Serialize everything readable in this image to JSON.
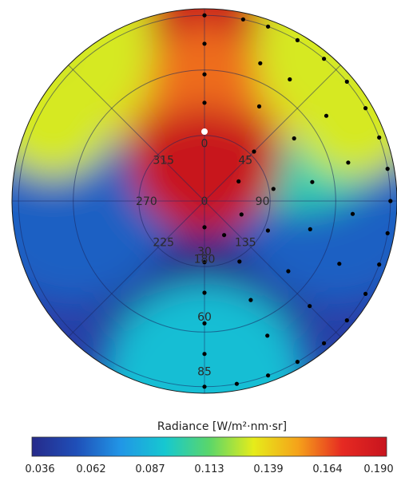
{
  "chart_data": {
    "type": "heatmap",
    "projection": "polar",
    "colorbar": {
      "title": "Radiance [W/m²·nm·sr]",
      "ticks": [
        "0.036",
        "0.062",
        "0.087",
        "0.113",
        "0.139",
        "0.164",
        "0.190"
      ],
      "vmin": 0.036,
      "vmax": 0.19,
      "colors": [
        "#262a8a",
        "#1f4fb8",
        "#2196e6",
        "#16c8d0",
        "#5ad66a",
        "#e6ec1a",
        "#f5a21a",
        "#e62a22",
        "#c8141e"
      ]
    },
    "azimuth_labels": [
      "0",
      "45",
      "90",
      "135",
      "180",
      "225",
      "270",
      "315"
    ],
    "zenith_labels": [
      "0",
      "30",
      "60",
      "85"
    ],
    "sun_position": {
      "azimuth_deg": 0,
      "zenith_deg": 20
    },
    "radiance_field": [
      {
        "azimuth_deg": 0,
        "zenith_deg": 85,
        "value": 0.19
      },
      {
        "azimuth_deg": 0,
        "zenith_deg": 50,
        "value": 0.14
      },
      {
        "azimuth_deg": 0,
        "zenith_deg": 20,
        "value": 0.19
      },
      {
        "azimuth_deg": 45,
        "zenith_deg": 60,
        "value": 0.1
      },
      {
        "azimuth_deg": 90,
        "zenith_deg": 60,
        "value": 0.06
      },
      {
        "azimuth_deg": 180,
        "zenith_deg": 40,
        "value": 0.036
      },
      {
        "azimuth_deg": 180,
        "zenith_deg": 85,
        "value": 0.09
      },
      {
        "azimuth_deg": 270,
        "zenith_deg": 60,
        "value": 0.06
      }
    ],
    "sample_points": [
      {
        "az": 0,
        "zen": 85
      },
      {
        "az": 0,
        "zen": 72
      },
      {
        "az": 0,
        "zen": 58
      },
      {
        "az": 0,
        "zen": 45
      },
      {
        "az": 180,
        "zen": 12
      },
      {
        "az": 180,
        "zen": 28
      },
      {
        "az": 180,
        "zen": 42
      },
      {
        "az": 180,
        "zen": 56
      },
      {
        "az": 180,
        "zen": 70
      },
      {
        "az": 180,
        "zen": 85
      },
      {
        "az": 12,
        "zen": 85
      },
      {
        "az": 20,
        "zen": 85
      },
      {
        "az": 30,
        "zen": 85
      },
      {
        "az": 40,
        "zen": 85
      },
      {
        "az": 50,
        "zen": 85
      },
      {
        "az": 60,
        "zen": 85
      },
      {
        "az": 70,
        "zen": 85
      },
      {
        "az": 80,
        "zen": 85
      },
      {
        "az": 90,
        "zen": 85
      },
      {
        "az": 100,
        "zen": 85
      },
      {
        "az": 110,
        "zen": 85
      },
      {
        "az": 120,
        "zen": 85
      },
      {
        "az": 130,
        "zen": 85
      },
      {
        "az": 140,
        "zen": 85
      },
      {
        "az": 150,
        "zen": 85
      },
      {
        "az": 160,
        "zen": 85
      },
      {
        "az": 170,
        "zen": 85
      },
      {
        "az": 22,
        "zen": 68
      },
      {
        "az": 35,
        "zen": 68
      },
      {
        "az": 55,
        "zen": 68
      },
      {
        "az": 75,
        "zen": 68
      },
      {
        "az": 95,
        "zen": 68
      },
      {
        "az": 115,
        "zen": 68
      },
      {
        "az": 135,
        "zen": 68
      },
      {
        "az": 155,
        "zen": 68
      },
      {
        "az": 30,
        "zen": 50
      },
      {
        "az": 55,
        "zen": 50
      },
      {
        "az": 80,
        "zen": 50
      },
      {
        "az": 105,
        "zen": 50
      },
      {
        "az": 130,
        "zen": 50
      },
      {
        "az": 155,
        "zen": 50
      },
      {
        "az": 45,
        "zen": 32
      },
      {
        "az": 80,
        "zen": 32
      },
      {
        "az": 115,
        "zen": 32
      },
      {
        "az": 150,
        "zen": 32
      },
      {
        "az": 60,
        "zen": 18
      },
      {
        "az": 110,
        "zen": 18
      },
      {
        "az": 150,
        "zen": 18
      }
    ]
  }
}
